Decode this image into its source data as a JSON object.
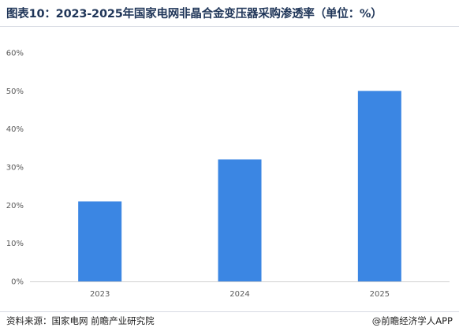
{
  "header": {
    "title": "图表10：2023-2025年国家电网非晶合金变压器采购渗透率（单位：%）"
  },
  "chart_data": {
    "type": "bar",
    "categories": [
      "2023",
      "2024",
      "2025"
    ],
    "values": [
      21,
      32,
      50
    ],
    "ylim": [
      0,
      60
    ],
    "yticks": [
      0,
      10,
      20,
      30,
      40,
      50,
      60
    ],
    "ytick_labels": [
      "0%",
      "10%",
      "20%",
      "30%",
      "40%",
      "50%",
      "60%"
    ],
    "bar_color": "#3b86e3",
    "grid": false,
    "legend": "none"
  },
  "footer": {
    "source": "资料来源：国家电网  前瞻产业研究院",
    "brand": "@前瞻经济学人APP"
  }
}
